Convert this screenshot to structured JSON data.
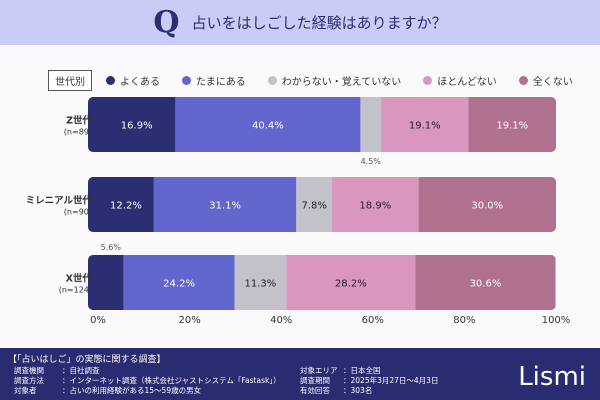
{
  "header": {
    "q": "Q",
    "question": "占いをはしごした経験はありますか？"
  },
  "legend_tag": "世代別",
  "chart_data": {
    "type": "bar",
    "orientation": "horizontal",
    "stacked": true,
    "categories": [
      {
        "name": "Z世代",
        "n": "(n=89)"
      },
      {
        "name": "ミレニアル世代",
        "n": "(n=90)"
      },
      {
        "name": "X世代",
        "n": "(n=124)"
      }
    ],
    "series": [
      {
        "name": "よくある",
        "color": "#2b2e72",
        "values": [
          16.9,
          12.2,
          5.6
        ]
      },
      {
        "name": "たまにある",
        "color": "#6366cc",
        "values": [
          40.4,
          31.1,
          24.2
        ]
      },
      {
        "name": "わからない・覚えていない",
        "color": "#c2c2ca",
        "values": [
          4.5,
          7.8,
          11.3
        ]
      },
      {
        "name": "ほとんどない",
        "color": "#d997be",
        "values": [
          19.1,
          18.9,
          28.2
        ]
      },
      {
        "name": "全くない",
        "color": "#b07090",
        "values": [
          19.1,
          30.0,
          30.6
        ]
      }
    ],
    "xticks": [
      "0%",
      "20%",
      "40%",
      "60%",
      "80%",
      "100%"
    ],
    "xlim": [
      0,
      100
    ],
    "legend": "top",
    "grid": false
  },
  "footer": {
    "title": "【「占いはしご」の実態に関する調査】",
    "rows": [
      {
        "k": "調査機関",
        "v": "：自社調査"
      },
      {
        "k": "調査方法",
        "v": "：インターネット調査（株式会社ジャストシステム「Fastask」）"
      },
      {
        "k": "対象者",
        "v": "：占いの利用経験がある15～59歳の男女"
      },
      {
        "k": "対象エリア",
        "v": "：日本全国"
      },
      {
        "k": "調査期間",
        "v": "：2025年3月27日～4月3日"
      },
      {
        "k": "有効回答",
        "v": "：303名"
      }
    ],
    "logo": "Lismi"
  }
}
